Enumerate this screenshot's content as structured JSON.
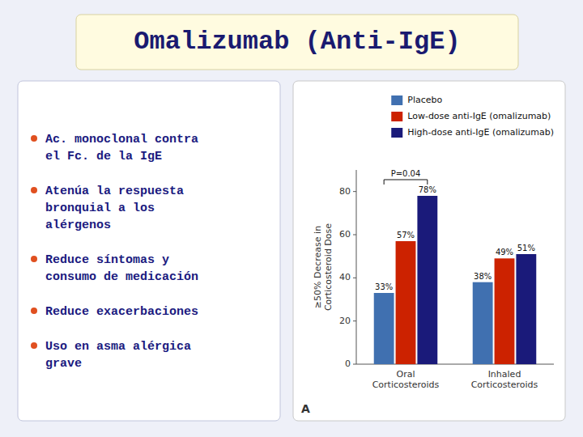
{
  "chart_data": {
    "type": "bar",
    "title": "Omalizumab (Anti-IgE)",
    "bullet_points": [
      "Ac. monoclonal contra\nel Fc. de la IgE",
      "Atenúa la respuesta\nbronquial a los\nalérgenos",
      "Reduce síntomas y\nconsumo de medicación",
      "Reduce exacerbaciones",
      "Uso en asma alérgica\ngrave"
    ],
    "categories": [
      "Oral\nCorticosteroids",
      "Inhaled\nCorticosteroids"
    ],
    "series": [
      {
        "name": "Placebo",
        "color": "#4070b0",
        "values": [
          33,
          38
        ],
        "value_labels": [
          "33%",
          "38%"
        ]
      },
      {
        "name": "Low-dose anti-IgE (omalizumab)",
        "color": "#cc2200",
        "values": [
          57,
          49
        ],
        "value_labels": [
          "57%",
          "49%"
        ]
      },
      {
        "name": "High-dose anti-IgE (omalizumab)",
        "color": "#1a1a7a",
        "values": [
          78,
          51
        ],
        "value_labels": [
          "78%",
          "51%"
        ]
      }
    ],
    "ylabel": "≥50% Decrease in\nCorticosteroid Dose",
    "ylim": [
      0,
      90
    ],
    "yticks": [
      0,
      20,
      40,
      60,
      80
    ],
    "annotations": [
      "P=0.04",
      "A"
    ],
    "data_labels": true,
    "grid": false,
    "legend": "upper right"
  }
}
